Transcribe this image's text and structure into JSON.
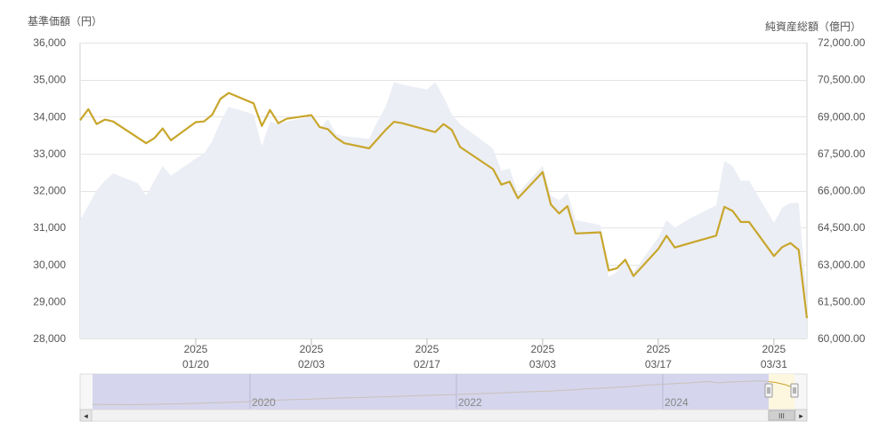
{
  "chart_data": {
    "type": "line",
    "left_axis_title": "基準価額（円）",
    "right_axis_title": "純資産総額（億円）",
    "left_ylim": [
      28000,
      36000
    ],
    "right_ylim": [
      60000,
      72000
    ],
    "left_ticks": [
      "28,000",
      "29,000",
      "30,000",
      "31,000",
      "32,000",
      "33,000",
      "34,000",
      "35,000",
      "36,000"
    ],
    "left_tick_values": [
      28000,
      29000,
      30000,
      31000,
      32000,
      33000,
      34000,
      35000,
      36000
    ],
    "right_ticks": [
      "60,000.00",
      "61,500.00",
      "63,000.00",
      "64,500.00",
      "66,000.00",
      "67,500.00",
      "69,000.00",
      "70,500.00",
      "72,000.00"
    ],
    "right_tick_values": [
      60000,
      61500,
      63000,
      64500,
      66000,
      67500,
      69000,
      70500,
      72000
    ],
    "x_ticks": [
      {
        "date": "2025-01-20",
        "year": "2025",
        "md": "01/20"
      },
      {
        "date": "2025-02-03",
        "year": "2025",
        "md": "02/03"
      },
      {
        "date": "2025-02-17",
        "year": "2025",
        "md": "02/17"
      },
      {
        "date": "2025-03-03",
        "year": "2025",
        "md": "03/03"
      },
      {
        "date": "2025-03-17",
        "year": "2025",
        "md": "03/17"
      },
      {
        "date": "2025-03-31",
        "year": "2025",
        "md": "03/31"
      }
    ],
    "grid": true,
    "series": [
      {
        "role": "基準価額",
        "axis": "left",
        "kind": "line",
        "color": "#c8a62c",
        "points": [
          [
            "2025-01-06",
            33900
          ],
          [
            "2025-01-07",
            34200
          ],
          [
            "2025-01-08",
            33800
          ],
          [
            "2025-01-09",
            33920
          ],
          [
            "2025-01-10",
            33870
          ],
          [
            "2025-01-14",
            33280
          ],
          [
            "2025-01-15",
            33420
          ],
          [
            "2025-01-16",
            33680
          ],
          [
            "2025-01-17",
            33360
          ],
          [
            "2025-01-20",
            33850
          ],
          [
            "2025-01-21",
            33870
          ],
          [
            "2025-01-22",
            34050
          ],
          [
            "2025-01-23",
            34480
          ],
          [
            "2025-01-24",
            34640
          ],
          [
            "2025-01-27",
            34360
          ],
          [
            "2025-01-28",
            33750
          ],
          [
            "2025-01-29",
            34180
          ],
          [
            "2025-01-30",
            33820
          ],
          [
            "2025-01-31",
            33940
          ],
          [
            "2025-02-03",
            34040
          ],
          [
            "2025-02-04",
            33720
          ],
          [
            "2025-02-05",
            33660
          ],
          [
            "2025-02-06",
            33430
          ],
          [
            "2025-02-07",
            33280
          ],
          [
            "2025-02-10",
            33140
          ],
          [
            "2025-02-12",
            33640
          ],
          [
            "2025-02-13",
            33860
          ],
          [
            "2025-02-14",
            33820
          ],
          [
            "2025-02-17",
            33640
          ],
          [
            "2025-02-18",
            33580
          ],
          [
            "2025-02-19",
            33800
          ],
          [
            "2025-02-20",
            33640
          ],
          [
            "2025-02-21",
            33180
          ],
          [
            "2025-02-25",
            32580
          ],
          [
            "2025-02-26",
            32160
          ],
          [
            "2025-02-27",
            32240
          ],
          [
            "2025-02-28",
            31790
          ],
          [
            "2025-03-03",
            32500
          ],
          [
            "2025-03-04",
            31620
          ],
          [
            "2025-03-05",
            31380
          ],
          [
            "2025-03-06",
            31580
          ],
          [
            "2025-03-07",
            30840
          ],
          [
            "2025-03-10",
            30870
          ],
          [
            "2025-03-11",
            29840
          ],
          [
            "2025-03-12",
            29900
          ],
          [
            "2025-03-13",
            30130
          ],
          [
            "2025-03-14",
            29690
          ],
          [
            "2025-03-17",
            30420
          ],
          [
            "2025-03-18",
            30780
          ],
          [
            "2025-03-19",
            30460
          ],
          [
            "2025-03-21",
            30590
          ],
          [
            "2025-03-24",
            30780
          ],
          [
            "2025-03-25",
            31560
          ],
          [
            "2025-03-26",
            31450
          ],
          [
            "2025-03-27",
            31150
          ],
          [
            "2025-03-28",
            31150
          ],
          [
            "2025-03-31",
            30230
          ],
          [
            "2025-04-01",
            30470
          ],
          [
            "2025-04-02",
            30580
          ],
          [
            "2025-04-03",
            30400
          ],
          [
            "2025-04-04",
            28550
          ]
        ]
      },
      {
        "role": "純資産総額",
        "axis": "right",
        "kind": "area",
        "color": "#eceef5",
        "points": [
          [
            "2025-01-06",
            64800
          ],
          [
            "2025-01-07",
            65400
          ],
          [
            "2025-01-08",
            66000
          ],
          [
            "2025-01-09",
            66400
          ],
          [
            "2025-01-10",
            66700
          ],
          [
            "2025-01-13",
            66300
          ],
          [
            "2025-01-14",
            65800
          ],
          [
            "2025-01-15",
            66400
          ],
          [
            "2025-01-16",
            67000
          ],
          [
            "2025-01-17",
            66600
          ],
          [
            "2025-01-20",
            67300
          ],
          [
            "2025-01-21",
            67500
          ],
          [
            "2025-01-22",
            68000
          ],
          [
            "2025-01-23",
            68800
          ],
          [
            "2025-01-24",
            69400
          ],
          [
            "2025-01-27",
            69100
          ],
          [
            "2025-01-28",
            67800
          ],
          [
            "2025-01-29",
            68800
          ],
          [
            "2025-01-30",
            68700
          ],
          [
            "2025-01-31",
            68800
          ],
          [
            "2025-02-03",
            69000
          ],
          [
            "2025-02-04",
            68500
          ],
          [
            "2025-02-05",
            68900
          ],
          [
            "2025-02-06",
            68300
          ],
          [
            "2025-02-07",
            68200
          ],
          [
            "2025-02-10",
            68100
          ],
          [
            "2025-02-11",
            68800
          ],
          [
            "2025-02-12",
            69400
          ],
          [
            "2025-02-13",
            70400
          ],
          [
            "2025-02-14",
            70300
          ],
          [
            "2025-02-17",
            70100
          ],
          [
            "2025-02-18",
            70400
          ],
          [
            "2025-02-19",
            69800
          ],
          [
            "2025-02-20",
            69100
          ],
          [
            "2025-02-21",
            68700
          ],
          [
            "2025-02-25",
            67700
          ],
          [
            "2025-02-26",
            66800
          ],
          [
            "2025-02-27",
            66900
          ],
          [
            "2025-02-28",
            65900
          ],
          [
            "2025-03-03",
            67000
          ],
          [
            "2025-03-04",
            65800
          ],
          [
            "2025-03-05",
            65600
          ],
          [
            "2025-03-06",
            65900
          ],
          [
            "2025-03-07",
            64800
          ],
          [
            "2025-03-10",
            64600
          ],
          [
            "2025-03-11",
            62500
          ],
          [
            "2025-03-12",
            62700
          ],
          [
            "2025-03-13",
            63200
          ],
          [
            "2025-03-14",
            62700
          ],
          [
            "2025-03-17",
            64100
          ],
          [
            "2025-03-18",
            64800
          ],
          [
            "2025-03-19",
            64500
          ],
          [
            "2025-03-21",
            64900
          ],
          [
            "2025-03-24",
            65400
          ],
          [
            "2025-03-25",
            67200
          ],
          [
            "2025-03-26",
            67000
          ],
          [
            "2025-03-27",
            66400
          ],
          [
            "2025-03-28",
            66400
          ],
          [
            "2025-03-31",
            64700
          ],
          [
            "2025-04-01",
            65300
          ],
          [
            "2025-04-02",
            65500
          ],
          [
            "2025-04-03",
            65500
          ],
          [
            "2025-04-04",
            61600
          ]
        ]
      }
    ],
    "navigator": {
      "year_labels": [
        "2020",
        "2022",
        "2024"
      ],
      "scroll_grip": "III",
      "scroll_left": "◂",
      "scroll_right": "▸",
      "line_values": [
        14400,
        14300,
        14200,
        14250,
        14100,
        14300,
        14400,
        14600,
        14700,
        14900,
        15100,
        15300,
        15600,
        15800,
        16100,
        16300,
        16700,
        17100,
        17500,
        17900,
        18200,
        18500,
        18700,
        19000,
        19300,
        19600,
        19900,
        20100,
        20300,
        20500,
        20800,
        21000,
        21200,
        21500,
        21800,
        22100,
        22400,
        22600,
        22900,
        23100,
        23400,
        23700,
        24000,
        24300,
        24700,
        25000,
        25300,
        25600,
        25900,
        26300,
        26700,
        27200,
        27700,
        28200,
        28600,
        29000,
        29500,
        30100,
        30700,
        31300,
        31700,
        32200,
        32600,
        33000,
        33600,
        34100,
        33000,
        33600,
        34000,
        34300,
        34600,
        34400,
        33300,
        31500,
        28600
      ],
      "line_color": "#c8a62c",
      "mask_color": "#c9c9ea",
      "selected_color": "#fdf7df"
    }
  }
}
